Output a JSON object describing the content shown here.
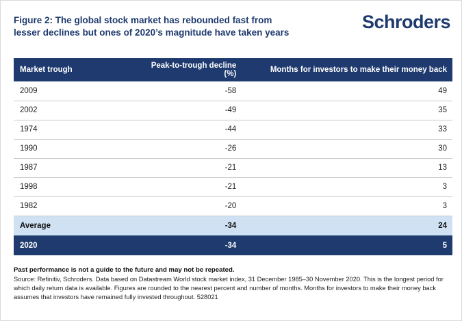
{
  "page": {
    "title_line1": "Figure 2: The global stock market has rebounded fast from",
    "title_line2": "lesser declines but ones of 2020’s magnitude have taken years",
    "logo_text": "Schroders"
  },
  "table": {
    "headers": [
      "Market trough",
      "Peak-to-trough decline (%)",
      "Months for investors to make their money back"
    ],
    "rows": [
      {
        "trough": "2009",
        "decline": "-58",
        "months": "49"
      },
      {
        "trough": "2002",
        "decline": "-49",
        "months": "35"
      },
      {
        "trough": "1974",
        "decline": "-44",
        "months": "33"
      },
      {
        "trough": "1990",
        "decline": "-26",
        "months": "30"
      },
      {
        "trough": "1987",
        "decline": "-21",
        "months": "13"
      },
      {
        "trough": "1998",
        "decline": "-21",
        "months": "3"
      },
      {
        "trough": "1982",
        "decline": "-20",
        "months": "3"
      },
      {
        "trough": "Average",
        "decline": "-34",
        "months": "24"
      },
      {
        "trough": "2020",
        "decline": "-34",
        "months": "5"
      }
    ]
  },
  "footer": {
    "warning": "Past performance is not a guide to the future and may not be repeated.",
    "source": "Source: Refinitiv, Schroders. Data based on Datastream World stock market index, 31 December 1985–30 November 2020. This is the longest period for which daily return data is available. Figures are rounded to the nearest percent and number of months. Months for investors to make their money back assumes that investors have remained fully invested throughout. 528021"
  },
  "colors": {
    "navy": "#1e3a6e",
    "average_row_blue": "#cfe1f3",
    "row_divider": "#c9c9c9"
  },
  "chart_data": {
    "type": "table",
    "title": "Figure 2: The global stock market has rebounded fast from lesser declines but ones of 2020’s magnitude have taken years",
    "columns": [
      "Market trough",
      "Peak-to-trough decline (%)",
      "Months for investors to make their money back"
    ],
    "rows": [
      [
        "2009",
        -58,
        49
      ],
      [
        "2002",
        -49,
        35
      ],
      [
        "1974",
        -44,
        33
      ],
      [
        "1990",
        -26,
        30
      ],
      [
        "1987",
        -21,
        13
      ],
      [
        "1998",
        -21,
        3
      ],
      [
        "1982",
        -20,
        3
      ],
      [
        "Average",
        -34,
        24
      ],
      [
        "2020",
        -34,
        5
      ]
    ],
    "highlight_rows": [
      "Average",
      "2020"
    ],
    "source_note": "Source: Refinitiv, Schroders. Data based on Datastream World stock market index, 31 December 1985–30 November 2020."
  }
}
